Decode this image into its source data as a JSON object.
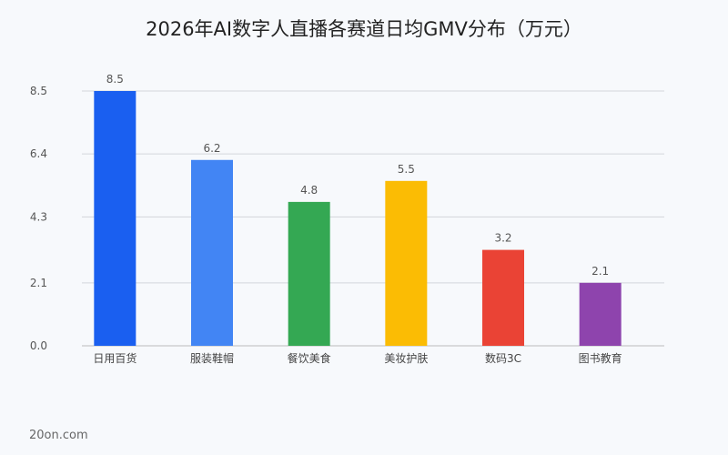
{
  "chart_data": {
    "type": "bar",
    "title": "2026年AI数字人直播各赛道日均GMV分布（万元）",
    "categories": [
      "日用百货",
      "服装鞋帽",
      "餐饮美食",
      "美妆护肤",
      "数码3C",
      "图书教育"
    ],
    "values": [
      8.5,
      6.2,
      4.8,
      5.5,
      3.2,
      2.1
    ],
    "colors": [
      "#1a5ff0",
      "#4285f4",
      "#34a853",
      "#fbbc04",
      "#ea4335",
      "#8e44ad"
    ],
    "yticks": [
      "0.0",
      "2.1",
      "4.3",
      "6.4",
      "8.5"
    ],
    "ylim": [
      0,
      8.5
    ],
    "grid": true,
    "legend": "none"
  },
  "footer": {
    "source": "20on.com"
  }
}
